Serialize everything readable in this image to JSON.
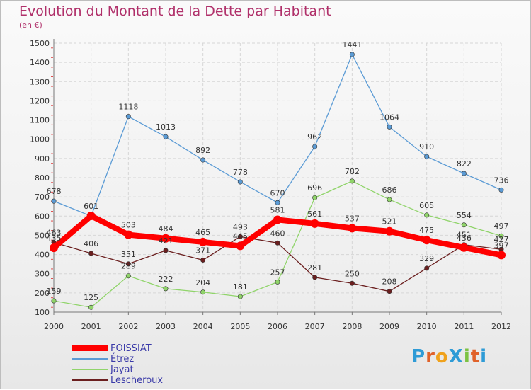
{
  "title": "Evolution du Montant de la Dette par Habitant",
  "unit": "(en €)",
  "logo": {
    "text": "ProXiti",
    "colors": [
      "#2e9bd6",
      "#e0622a",
      "#f0a21c",
      "#2e9bd6",
      "#7cc242",
      "#e0622a",
      "#2e9bd6"
    ]
  },
  "chart_data": {
    "type": "line",
    "x": [
      "2000",
      "2001",
      "2002",
      "2003",
      "2004",
      "2005",
      "2006",
      "2007",
      "2008",
      "2009",
      "2010",
      "2011",
      "2012"
    ],
    "ylim": [
      100,
      1500
    ],
    "yticks": [
      100,
      200,
      300,
      400,
      500,
      600,
      700,
      800,
      900,
      1000,
      1100,
      1200,
      1300,
      1400,
      1500
    ],
    "grid": true,
    "legend_position": "bottom-left",
    "series": [
      {
        "name": "FOISSIAT",
        "color": "#ff0000",
        "values": [
          435,
          601,
          503,
          484,
          465,
          445,
          581,
          561,
          537,
          521,
          475,
          436,
          397
        ]
      },
      {
        "name": "Étrez",
        "color": "#5b9bd5",
        "values": [
          678,
          600,
          1118,
          1013,
          892,
          778,
          670,
          962,
          1441,
          1064,
          910,
          822,
          736
        ]
      },
      {
        "name": "Jayat",
        "color": "#90d46a",
        "values": [
          159,
          125,
          289,
          222,
          204,
          181,
          257,
          696,
          782,
          686,
          605,
          554,
          497
        ]
      },
      {
        "name": "Lescheroux",
        "color": "#6b1f1f",
        "values": [
          463,
          406,
          351,
          421,
          371,
          493,
          460,
          281,
          250,
          208,
          329,
          451,
          427
        ]
      }
    ],
    "labels": [
      [
        "435",
        "601",
        "503",
        "484",
        "465",
        "445",
        "581",
        "561",
        "537",
        "521",
        "475",
        "436",
        "397"
      ],
      [
        "678",
        "",
        "1118",
        "1013",
        "892",
        "778",
        "670",
        "962",
        "1441",
        "1064",
        "910",
        "822",
        "736"
      ],
      [
        "159",
        "125",
        "289",
        "222",
        "204",
        "181",
        "257",
        "696",
        "782",
        "686",
        "605",
        "554",
        "497"
      ],
      [
        "463",
        "406",
        "351",
        "421",
        "371",
        "493",
        "460",
        "281",
        "250",
        "208",
        "329",
        "451",
        "427"
      ]
    ]
  }
}
